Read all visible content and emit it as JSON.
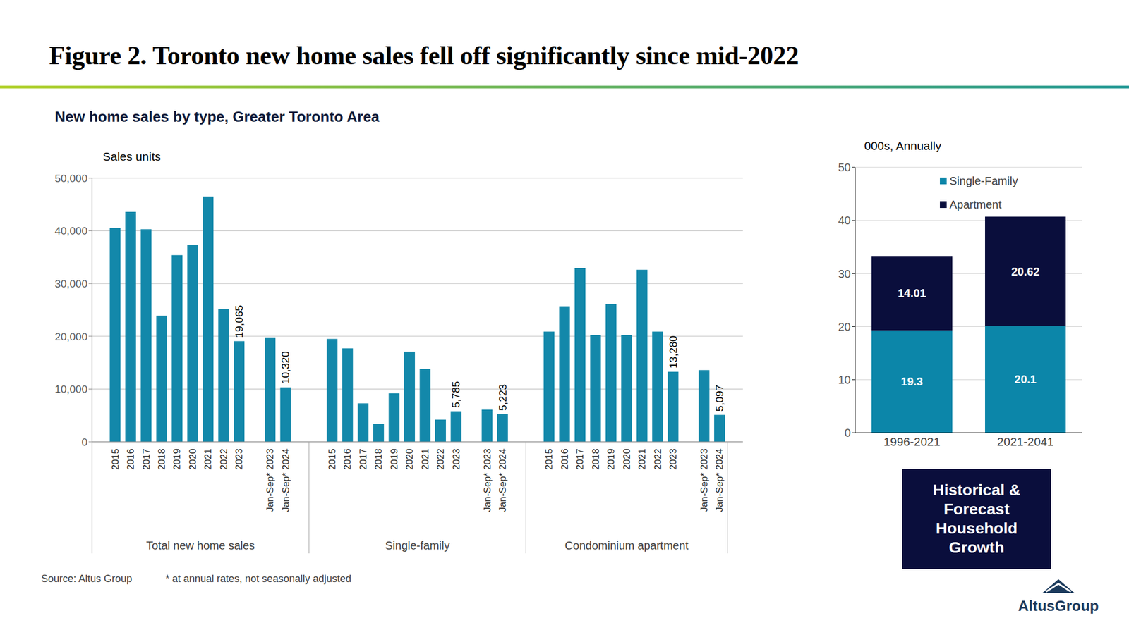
{
  "title": "Figure 2. Toronto new home sales fell off significantly since mid-2022",
  "source": "Source:  Altus Group",
  "footnote": "* at annual rates, not seasonally adjusted",
  "logo": "AltusGroup",
  "chart_data": [
    {
      "type": "bar",
      "title": "New home sales by type, Greater Toronto Area",
      "y_label": "Sales units",
      "color": "#1388aa",
      "grid": true,
      "ylim": [
        0,
        50000
      ],
      "yticks": [
        0,
        {
          "value": 10000,
          "label": "10,000"
        },
        {
          "value": 20000,
          "label": "20,000"
        },
        {
          "value": 30000,
          "label": "30,000"
        },
        {
          "value": 40000,
          "label": "40,000"
        },
        {
          "value": 50000,
          "label": "50,000"
        }
      ],
      "groups": [
        {
          "name": "Total new home sales",
          "categories": [
            "2015",
            "2016",
            "2017",
            "2018",
            "2019",
            "2020",
            "2021",
            "2022",
            "2023",
            null,
            "Jan-Sep* 2023",
            "Jan-Sep* 2024"
          ],
          "values": [
            40500,
            43600,
            40300,
            23900,
            35400,
            37400,
            46500,
            25200,
            19065,
            null,
            19800,
            10320
          ],
          "value_labels": [
            null,
            null,
            null,
            null,
            null,
            null,
            null,
            null,
            "19,065",
            null,
            null,
            "10,320"
          ]
        },
        {
          "name": "Single-family",
          "categories": [
            "2015",
            "2016",
            "2017",
            "2018",
            "2019",
            "2020",
            "2021",
            "2022",
            "2023",
            null,
            "Jan-Sep* 2023",
            "Jan-Sep* 2024"
          ],
          "values": [
            19500,
            17700,
            7300,
            3400,
            9200,
            17100,
            13800,
            4200,
            5785,
            null,
            6100,
            5223
          ],
          "value_labels": [
            null,
            null,
            null,
            null,
            null,
            null,
            null,
            null,
            "5,785",
            null,
            null,
            "5,223"
          ]
        },
        {
          "name": "Condominium apartment",
          "categories": [
            "2015",
            "2016",
            "2017",
            "2018",
            "2019",
            "2020",
            "2021",
            "2022",
            "2023",
            null,
            "Jan-Sep* 2023",
            "Jan-Sep* 2024"
          ],
          "values": [
            20900,
            25700,
            32900,
            20200,
            26100,
            20200,
            32600,
            20900,
            13280,
            null,
            13600,
            5097
          ],
          "value_labels": [
            null,
            null,
            null,
            null,
            null,
            null,
            null,
            null,
            "13,280",
            null,
            null,
            "5,097"
          ]
        }
      ]
    },
    {
      "type": "bar",
      "stacked": true,
      "data_labels": true,
      "legend": "top",
      "grid": true,
      "y_label": "000s, Annually",
      "annotation": "Historical & Forecast Household Growth",
      "categories": [
        "1996-2021",
        "2021-2041"
      ],
      "series": [
        {
          "name": "Single-Family",
          "color": "#0c86a9",
          "values": [
            19.3,
            20.1
          ]
        },
        {
          "name": "Apartment",
          "color": "#0a0e3c",
          "values": [
            14.01,
            20.62
          ]
        }
      ],
      "ylim": [
        0,
        50
      ],
      "yticks": [
        0,
        10,
        20,
        30,
        40,
        50
      ]
    }
  ]
}
